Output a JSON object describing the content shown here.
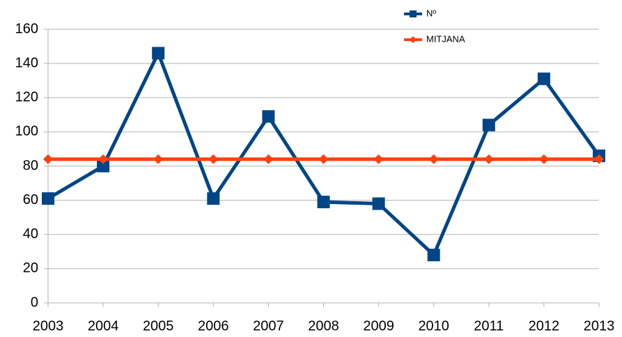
{
  "chart_data": {
    "type": "line",
    "categories": [
      "2003",
      "2004",
      "2005",
      "2006",
      "2007",
      "2008",
      "2009",
      "2010",
      "2011",
      "2012",
      "2013"
    ],
    "series": [
      {
        "name": "Nº",
        "color": "#004586",
        "marker": "square",
        "values": [
          61,
          80,
          146,
          61,
          109,
          59,
          58,
          28,
          104,
          131,
          86
        ]
      },
      {
        "name": "MITJANA",
        "color": "#ff420e",
        "marker": "diamond",
        "values": [
          84,
          84,
          84,
          84,
          84,
          84,
          84,
          84,
          84,
          84,
          84
        ]
      }
    ],
    "ylim": [
      0,
      160
    ],
    "yticks": [
      0,
      20,
      40,
      60,
      80,
      100,
      120,
      140,
      160
    ],
    "grid": true,
    "legend": "top-right"
  }
}
